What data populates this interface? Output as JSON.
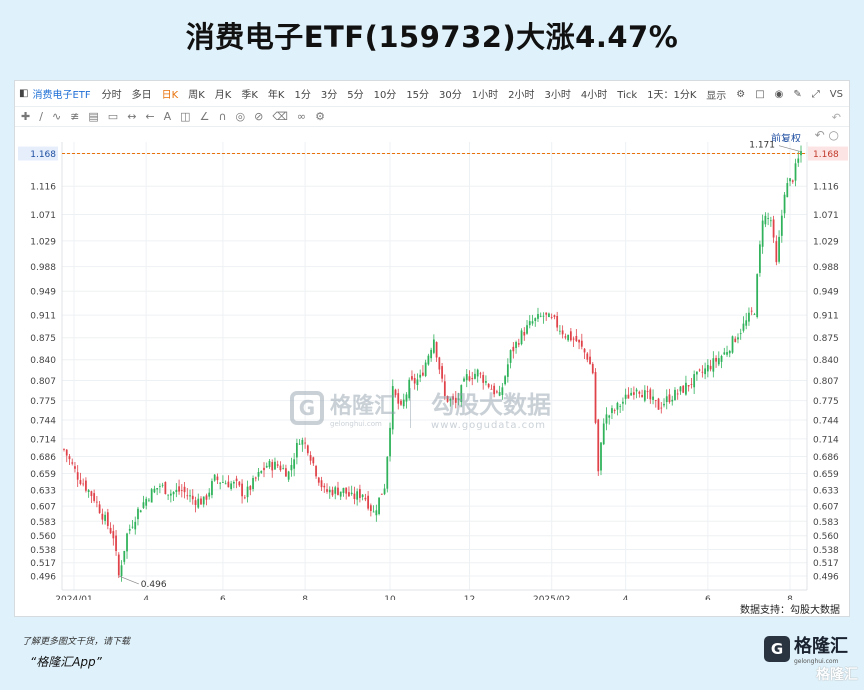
{
  "headline": "消费电子ETF(159732)大涨4.47%",
  "toolbar": {
    "symbol": "消费电子ETF",
    "timeframes": [
      "分时",
      "多日",
      "日K",
      "周K",
      "月K",
      "季K",
      "年K",
      "1分",
      "3分",
      "5分",
      "10分",
      "15分",
      "30分",
      "1小时",
      "2小时",
      "3小时",
      "4小时",
      "Tick",
      "1天：1分K"
    ],
    "active_timeframe": "日K",
    "display_label": "显示",
    "vs_label": "VS",
    "adjust_label": "前复权"
  },
  "watermark": {
    "brand": "格隆汇",
    "brand_url": "gelonghui.com",
    "data_brand": "勾股大数据",
    "data_url": "www.gogudata.com"
  },
  "source_note": "数据支持：勾股大数据",
  "footer": {
    "line1": "了解更多图文干货，请下载",
    "line2": "“格隆汇App”",
    "logo_brand": "格隆汇",
    "logo_url": "gelonghui.com",
    "corner_mark": "格隆汇"
  },
  "colors": {
    "up": "#2fb25a",
    "down": "#e0424a",
    "current_line": "#e8710a"
  },
  "chart_data": {
    "type": "candlestick",
    "title": "",
    "xlabel": "",
    "ylabel": "",
    "ylim": [
      0.48,
      1.18
    ],
    "y_ticks": [
      "1.168",
      "1.116",
      "1.071",
      "1.029",
      "0.988",
      "0.949",
      "0.911",
      "0.875",
      "0.840",
      "0.807",
      "0.775",
      "0.744",
      "0.714",
      "0.686",
      "0.659",
      "0.633",
      "0.607",
      "0.583",
      "0.560",
      "0.538",
      "0.517",
      "0.496"
    ],
    "x_ticks": [
      "2024/01",
      "4",
      "6",
      "8",
      "10",
      "12",
      "2025/02",
      "4",
      "6",
      "8"
    ],
    "current_price": "1.168",
    "annotations": {
      "high_label": "1.171",
      "low_label": "0.496"
    },
    "legend": "none",
    "grid": true,
    "close_path": [
      [
        0,
        0.697
      ],
      [
        5,
        0.655
      ],
      [
        11,
        0.62
      ],
      [
        15,
        0.585
      ],
      [
        18,
        0.56
      ],
      [
        20,
        0.496
      ],
      [
        23,
        0.562
      ],
      [
        27,
        0.6
      ],
      [
        31,
        0.625
      ],
      [
        35,
        0.64
      ],
      [
        39,
        0.628
      ],
      [
        43,
        0.632
      ],
      [
        47,
        0.618
      ],
      [
        51,
        0.614
      ],
      [
        55,
        0.65
      ],
      [
        59,
        0.645
      ],
      [
        63,
        0.64
      ],
      [
        66,
        0.624
      ],
      [
        70,
        0.65
      ],
      [
        74,
        0.672
      ],
      [
        78,
        0.672
      ],
      [
        82,
        0.66
      ],
      [
        86,
        0.715
      ],
      [
        89,
        0.7
      ],
      [
        92,
        0.662
      ],
      [
        95,
        0.63
      ],
      [
        99,
        0.632
      ],
      [
        102,
        0.632
      ],
      [
        105,
        0.62
      ],
      [
        109,
        0.628
      ],
      [
        113,
        0.596
      ],
      [
        117,
        0.64
      ],
      [
        120,
        0.79
      ],
      [
        123,
        0.76
      ],
      [
        126,
        0.8
      ],
      [
        130,
        0.81
      ],
      [
        135,
        0.875
      ],
      [
        139,
        0.78
      ],
      [
        143,
        0.77
      ],
      [
        147,
        0.812
      ],
      [
        151,
        0.82
      ],
      [
        155,
        0.8
      ],
      [
        159,
        0.78
      ],
      [
        163,
        0.85
      ],
      [
        167,
        0.88
      ],
      [
        171,
        0.9
      ],
      [
        175,
        0.91
      ],
      [
        179,
        0.9
      ],
      [
        183,
        0.88
      ],
      [
        187,
        0.87
      ],
      [
        191,
        0.845
      ],
      [
        193,
        0.82
      ],
      [
        195,
        0.66
      ],
      [
        197,
        0.745
      ],
      [
        201,
        0.76
      ],
      [
        205,
        0.778
      ],
      [
        209,
        0.798
      ],
      [
        213,
        0.78
      ],
      [
        217,
        0.765
      ],
      [
        221,
        0.78
      ],
      [
        225,
        0.79
      ],
      [
        229,
        0.805
      ],
      [
        233,
        0.82
      ],
      [
        237,
        0.835
      ],
      [
        241,
        0.85
      ],
      [
        245,
        0.875
      ],
      [
        249,
        0.9
      ],
      [
        252,
        0.92
      ],
      [
        255,
        1.068
      ],
      [
        258,
        1.062
      ],
      [
        260,
        0.99
      ],
      [
        263,
        1.11
      ],
      [
        266,
        1.13
      ],
      [
        269,
        1.171
      ]
    ]
  }
}
